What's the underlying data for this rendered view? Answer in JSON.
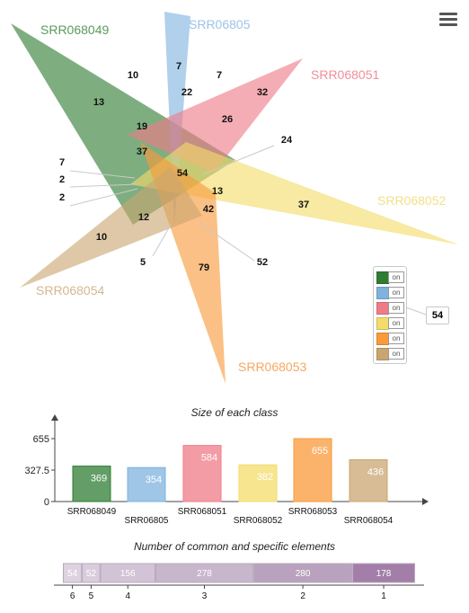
{
  "venn": {
    "sets": [
      {
        "name": "SRR068049",
        "color": "#2e7d32"
      },
      {
        "name": "SRR06805",
        "color": "#7fb3de"
      },
      {
        "name": "SRR068051",
        "color": "#ef7b88"
      },
      {
        "name": "SRR068052",
        "color": "#f4dc6a"
      },
      {
        "name": "SRR068053",
        "color": "#f99a3a"
      },
      {
        "name": "SRR068054",
        "color": "#c9a671"
      }
    ],
    "region_counts": [
      "10",
      "7",
      "7",
      "22",
      "32",
      "13",
      "19",
      "26",
      "24",
      "37",
      "7",
      "2",
      "2",
      "54",
      "13",
      "42",
      "12",
      "37",
      "10",
      "5",
      "79",
      "52"
    ],
    "legend_toggles": [
      "on",
      "on",
      "on",
      "on",
      "on",
      "on"
    ],
    "total": "54"
  },
  "chart_data": [
    {
      "type": "bar",
      "title": "Size of each class",
      "categories": [
        "SRR068049",
        "SRR06805",
        "SRR068051",
        "SRR068052",
        "SRR068053",
        "SRR068054"
      ],
      "values": [
        369,
        354,
        584,
        382,
        655,
        436
      ],
      "colors": [
        "#2e7d32",
        "#7fb3de",
        "#ef7b88",
        "#f4dc6a",
        "#f99a3a",
        "#c9a671"
      ],
      "yticks": [
        "0",
        "327.5",
        "655"
      ],
      "ylim": [
        0,
        655
      ]
    },
    {
      "type": "bar",
      "title": "Number of common and specific elements",
      "categories": [
        "6",
        "5",
        "4",
        "3",
        "2",
        "1"
      ],
      "values": [
        54,
        52,
        156,
        278,
        280,
        178
      ],
      "colors": [
        "#ddd2df",
        "#d9cddb",
        "#d2c4d6",
        "#c8b7cc",
        "#b9a2be",
        "#a37ea9"
      ]
    }
  ]
}
